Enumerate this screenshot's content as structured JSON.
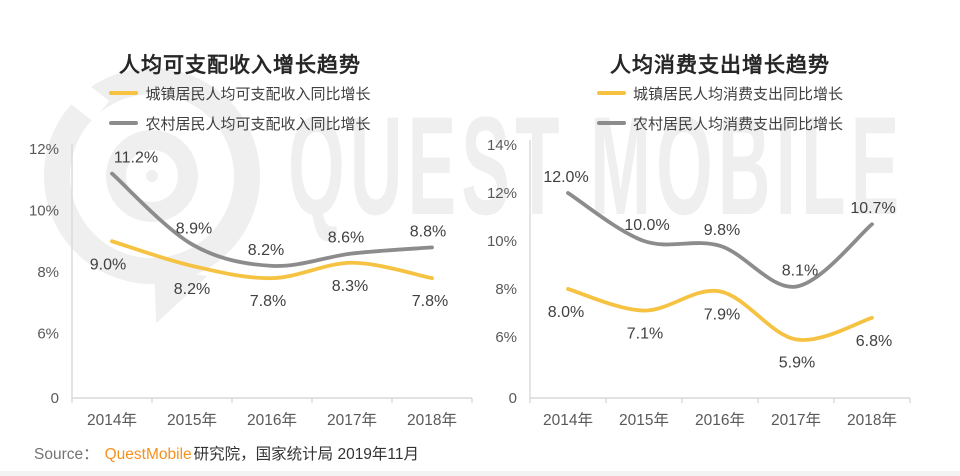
{
  "watermark": {
    "text": "QUEST MOBILE"
  },
  "brand_colors": {
    "series_urban": "#F5C242",
    "series_rural": "#8C8C8C",
    "brand_orange": "#F6921E",
    "watermark_gray": "#efefef",
    "axis_gray": "#d9d9d9"
  },
  "source": {
    "prefix": "Source：",
    "brand": "QuestMobile",
    "suffix": "研究院，国家统计局 2019年11月"
  },
  "chart_data": [
    {
      "type": "line",
      "title": "人均可支配收入增长趋势",
      "categories": [
        "2014年",
        "2015年",
        "2016年",
        "2017年",
        "2018年"
      ],
      "series": [
        {
          "name": "城镇居民人均可支配收入同比增长",
          "color": "#F5C242",
          "values": [
            9.0,
            8.2,
            7.8,
            8.3,
            7.8
          ],
          "point_labels": [
            "9.0%",
            "8.2%",
            "7.8%",
            "8.3%",
            "7.8%"
          ],
          "label_side": "below",
          "label_dx": [
            -4,
            0,
            -4,
            -2,
            -2
          ]
        },
        {
          "name": "农村居民人均可支配收入同比增长",
          "color": "#8C8C8C",
          "values": [
            11.2,
            8.9,
            8.2,
            8.6,
            8.8
          ],
          "point_labels": [
            "11.2%",
            "8.9%",
            "8.2%",
            "8.6%",
            "8.8%"
          ],
          "label_side": "above",
          "label_dx": [
            24,
            2,
            -6,
            -6,
            -4
          ]
        }
      ],
      "y_axis": {
        "tick_labels": [
          "0",
          "6%",
          "8%",
          "10%",
          "12%"
        ],
        "tick_values": [
          0,
          6,
          8,
          10,
          12
        ],
        "broken_axis": true
      },
      "ylim": [
        0,
        12
      ],
      "grid": false,
      "legend_position": "top-center"
    },
    {
      "type": "line",
      "title": "人均消费支出增长趋势",
      "categories": [
        "2014年",
        "2015年",
        "2016年",
        "2017年",
        "2018年"
      ],
      "series": [
        {
          "name": "城镇居民人均消费支出同比增长",
          "color": "#F5C242",
          "values": [
            8.0,
            7.1,
            7.9,
            5.9,
            6.8
          ],
          "point_labels": [
            "8.0%",
            "7.1%",
            "7.9%",
            "5.9%",
            "6.8%"
          ],
          "label_side": "below",
          "label_dx": [
            -2,
            1,
            2,
            1,
            2
          ]
        },
        {
          "name": "农村居民人均消费支出同比增长",
          "color": "#8C8C8C",
          "values": [
            12.0,
            10.0,
            9.8,
            8.1,
            10.7
          ],
          "point_labels": [
            "12.0%",
            "10.0%",
            "9.8%",
            "8.1%",
            "10.7%"
          ],
          "label_side": "above",
          "label_dx": [
            -2,
            3,
            2,
            4,
            1
          ]
        }
      ],
      "y_axis": {
        "tick_labels": [
          "0",
          "6%",
          "8%",
          "10%",
          "12%",
          "14%"
        ],
        "tick_values": [
          0,
          6,
          8,
          10,
          12,
          14
        ],
        "broken_axis": true
      },
      "ylim": [
        0,
        14
      ],
      "grid": false,
      "legend_position": "top-center"
    }
  ]
}
